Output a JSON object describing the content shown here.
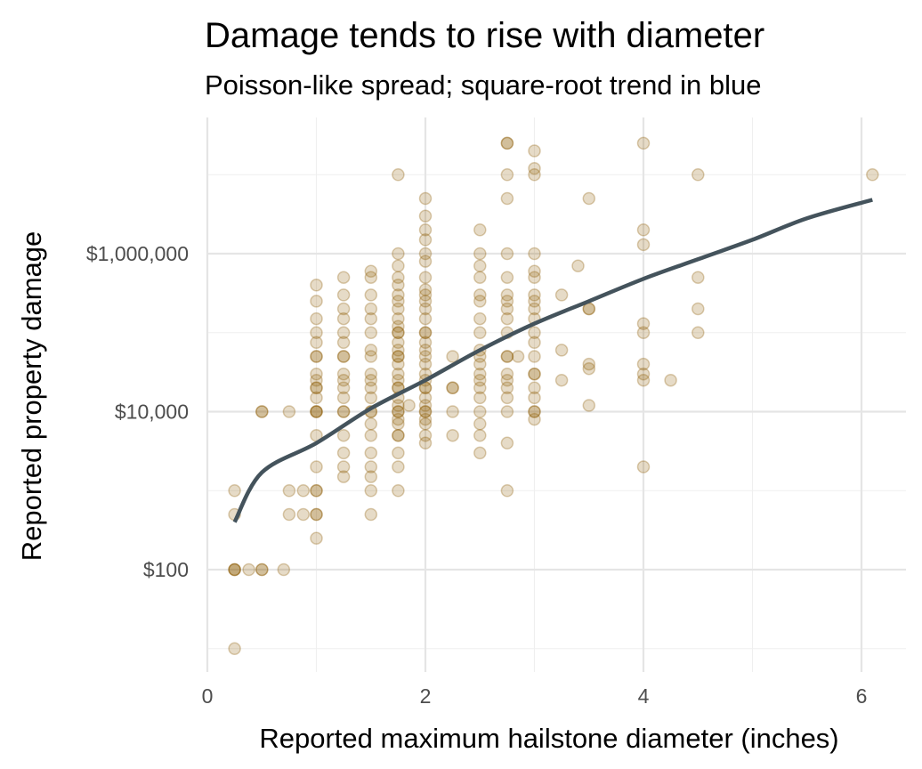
{
  "chart_data": {
    "type": "scatter",
    "title": "Damage tends to rise with diameter",
    "subtitle": "Poisson-like spread; square-root trend in blue",
    "xlabel": "Reported maximum hailstone diameter (inches)",
    "ylabel": "Reported property damage",
    "x_ticks": [
      0,
      2,
      4,
      6
    ],
    "x_tick_labels": [
      "0",
      "2",
      "4",
      "6"
    ],
    "xlim": [
      0,
      6.25
    ],
    "y_scale": "log10",
    "ylim": [
      5,
      20000000
    ],
    "y_ticks": [
      100,
      10000,
      1000000
    ],
    "y_tick_labels": [
      "$100",
      "$10,000",
      "$1,000,000"
    ],
    "y_minor_ticks": [
      10,
      1000,
      100000,
      10000000
    ],
    "grid": true,
    "point_color": "#8B5A00",
    "trend_color": "#44535C",
    "points": [
      [
        0.25,
        10
      ],
      [
        0.25,
        100
      ],
      [
        0.25,
        100
      ],
      [
        0.25,
        100
      ],
      [
        0.25,
        500
      ],
      [
        0.25,
        1000
      ],
      [
        0.38,
        100
      ],
      [
        0.5,
        100
      ],
      [
        0.5,
        100
      ],
      [
        0.5,
        10000
      ],
      [
        0.5,
        10000
      ],
      [
        0.7,
        100
      ],
      [
        0.75,
        10000
      ],
      [
        0.75,
        500
      ],
      [
        0.75,
        1000
      ],
      [
        0.88,
        500
      ],
      [
        0.88,
        1000
      ],
      [
        1.0,
        250
      ],
      [
        1.0,
        500
      ],
      [
        1.0,
        500
      ],
      [
        1.0,
        1000
      ],
      [
        1.0,
        1000
      ],
      [
        1.0,
        2000
      ],
      [
        1.0,
        5000
      ],
      [
        1.0,
        10000
      ],
      [
        1.0,
        10000
      ],
      [
        1.0,
        10000
      ],
      [
        1.0,
        15000
      ],
      [
        1.0,
        20000
      ],
      [
        1.0,
        20000
      ],
      [
        1.0,
        25000
      ],
      [
        1.0,
        30000
      ],
      [
        1.0,
        50000
      ],
      [
        1.0,
        50000
      ],
      [
        1.0,
        75000
      ],
      [
        1.0,
        100000
      ],
      [
        1.0,
        150000
      ],
      [
        1.0,
        250000
      ],
      [
        1.0,
        400000
      ],
      [
        1.25,
        1500
      ],
      [
        1.25,
        2000
      ],
      [
        1.25,
        3000
      ],
      [
        1.25,
        5000
      ],
      [
        1.25,
        10000
      ],
      [
        1.25,
        10000
      ],
      [
        1.25,
        15000
      ],
      [
        1.25,
        20000
      ],
      [
        1.25,
        25000
      ],
      [
        1.25,
        30000
      ],
      [
        1.25,
        50000
      ],
      [
        1.25,
        50000
      ],
      [
        1.25,
        75000
      ],
      [
        1.25,
        100000
      ],
      [
        1.25,
        150000
      ],
      [
        1.25,
        200000
      ],
      [
        1.25,
        300000
      ],
      [
        1.25,
        500000
      ],
      [
        1.5,
        500
      ],
      [
        1.5,
        1000
      ],
      [
        1.5,
        1500
      ],
      [
        1.5,
        2000
      ],
      [
        1.5,
        3000
      ],
      [
        1.5,
        5000
      ],
      [
        1.5,
        7000
      ],
      [
        1.5,
        10000
      ],
      [
        1.5,
        10000
      ],
      [
        1.5,
        15000
      ],
      [
        1.5,
        20000
      ],
      [
        1.5,
        25000
      ],
      [
        1.5,
        30000
      ],
      [
        1.5,
        50000
      ],
      [
        1.5,
        60000
      ],
      [
        1.5,
        100000
      ],
      [
        1.5,
        150000
      ],
      [
        1.5,
        200000
      ],
      [
        1.5,
        300000
      ],
      [
        1.5,
        500000
      ],
      [
        1.5,
        600000
      ],
      [
        1.75,
        1000
      ],
      [
        1.75,
        2000
      ],
      [
        1.75,
        3000
      ],
      [
        1.75,
        5000
      ],
      [
        1.75,
        5000
      ],
      [
        1.75,
        7000
      ],
      [
        1.75,
        8000
      ],
      [
        1.75,
        10000
      ],
      [
        1.75,
        10000
      ],
      [
        1.75,
        12000
      ],
      [
        1.75,
        15000
      ],
      [
        1.75,
        20000
      ],
      [
        1.75,
        20000
      ],
      [
        1.75,
        25000
      ],
      [
        1.75,
        30000
      ],
      [
        1.75,
        40000
      ],
      [
        1.75,
        50000
      ],
      [
        1.75,
        50000
      ],
      [
        1.75,
        60000
      ],
      [
        1.75,
        75000
      ],
      [
        1.75,
        100000
      ],
      [
        1.75,
        100000
      ],
      [
        1.75,
        120000
      ],
      [
        1.75,
        150000
      ],
      [
        1.75,
        200000
      ],
      [
        1.75,
        250000
      ],
      [
        1.75,
        300000
      ],
      [
        1.75,
        400000
      ],
      [
        1.75,
        500000
      ],
      [
        1.75,
        700000
      ],
      [
        1.75,
        1000000
      ],
      [
        1.75,
        10000000
      ],
      [
        1.85,
        12000
      ],
      [
        2.0,
        4000
      ],
      [
        2.0,
        5000
      ],
      [
        2.0,
        7000
      ],
      [
        2.0,
        8000
      ],
      [
        2.0,
        10000
      ],
      [
        2.0,
        10000
      ],
      [
        2.0,
        12000
      ],
      [
        2.0,
        15000
      ],
      [
        2.0,
        20000
      ],
      [
        2.0,
        20000
      ],
      [
        2.0,
        25000
      ],
      [
        2.0,
        30000
      ],
      [
        2.0,
        40000
      ],
      [
        2.0,
        50000
      ],
      [
        2.0,
        60000
      ],
      [
        2.0,
        75000
      ],
      [
        2.0,
        100000
      ],
      [
        2.0,
        100000
      ],
      [
        2.0,
        150000
      ],
      [
        2.0,
        200000
      ],
      [
        2.0,
        250000
      ],
      [
        2.0,
        300000
      ],
      [
        2.0,
        350000
      ],
      [
        2.0,
        500000
      ],
      [
        2.0,
        800000
      ],
      [
        2.0,
        1000000
      ],
      [
        2.0,
        1500000
      ],
      [
        2.0,
        2000000
      ],
      [
        2.0,
        3000000
      ],
      [
        2.0,
        5000000
      ],
      [
        2.25,
        5000
      ],
      [
        2.25,
        10000
      ],
      [
        2.25,
        20000
      ],
      [
        2.25,
        20000
      ],
      [
        2.25,
        50000
      ],
      [
        2.5,
        3000
      ],
      [
        2.5,
        5000
      ],
      [
        2.5,
        7000
      ],
      [
        2.5,
        10000
      ],
      [
        2.5,
        15000
      ],
      [
        2.5,
        20000
      ],
      [
        2.5,
        25000
      ],
      [
        2.5,
        30000
      ],
      [
        2.5,
        40000
      ],
      [
        2.5,
        50000
      ],
      [
        2.5,
        60000
      ],
      [
        2.5,
        100000
      ],
      [
        2.5,
        150000
      ],
      [
        2.5,
        250000
      ],
      [
        2.5,
        300000
      ],
      [
        2.5,
        500000
      ],
      [
        2.5,
        700000
      ],
      [
        2.5,
        1000000
      ],
      [
        2.5,
        2000000
      ],
      [
        2.75,
        1000
      ],
      [
        2.75,
        4000
      ],
      [
        2.75,
        10000
      ],
      [
        2.75,
        15000
      ],
      [
        2.75,
        20000
      ],
      [
        2.75,
        25000
      ],
      [
        2.75,
        30000
      ],
      [
        2.75,
        50000
      ],
      [
        2.75,
        50000
      ],
      [
        2.75,
        100000
      ],
      [
        2.75,
        150000
      ],
      [
        2.75,
        200000
      ],
      [
        2.75,
        250000
      ],
      [
        2.75,
        300000
      ],
      [
        2.75,
        500000
      ],
      [
        2.75,
        1000000
      ],
      [
        2.75,
        5000000
      ],
      [
        2.75,
        10000000
      ],
      [
        2.75,
        25000000
      ],
      [
        2.75,
        25000000
      ],
      [
        2.85,
        50000
      ],
      [
        3.0,
        8000
      ],
      [
        3.0,
        10000
      ],
      [
        3.0,
        10000
      ],
      [
        3.0,
        15000
      ],
      [
        3.0,
        20000
      ],
      [
        3.0,
        30000
      ],
      [
        3.0,
        30000
      ],
      [
        3.0,
        50000
      ],
      [
        3.0,
        75000
      ],
      [
        3.0,
        100000
      ],
      [
        3.0,
        150000
      ],
      [
        3.0,
        200000
      ],
      [
        3.0,
        250000
      ],
      [
        3.0,
        300000
      ],
      [
        3.0,
        500000
      ],
      [
        3.0,
        600000
      ],
      [
        3.0,
        1000000
      ],
      [
        3.0,
        10000000
      ],
      [
        3.0,
        12000000
      ],
      [
        3.0,
        20000000
      ],
      [
        3.25,
        25000
      ],
      [
        3.25,
        60000
      ],
      [
        3.25,
        300000
      ],
      [
        3.4,
        700000
      ],
      [
        3.5,
        12000
      ],
      [
        3.5,
        35000
      ],
      [
        3.5,
        40000
      ],
      [
        3.5,
        200000
      ],
      [
        3.5,
        200000
      ],
      [
        3.5,
        5000000
      ],
      [
        4.0,
        2000
      ],
      [
        4.0,
        25000
      ],
      [
        4.0,
        30000
      ],
      [
        4.0,
        40000
      ],
      [
        4.0,
        100000
      ],
      [
        4.0,
        130000
      ],
      [
        4.0,
        1300000
      ],
      [
        4.0,
        2000000
      ],
      [
        4.0,
        25000000
      ],
      [
        4.25,
        25000
      ],
      [
        4.5,
        100000
      ],
      [
        4.5,
        200000
      ],
      [
        4.5,
        500000
      ],
      [
        4.5,
        10000000
      ],
      [
        6.1,
        10000000
      ]
    ],
    "trend_line": [
      [
        0.25,
        400
      ],
      [
        0.5,
        1700
      ],
      [
        1.0,
        4000
      ],
      [
        1.5,
        11000
      ],
      [
        2.0,
        25000
      ],
      [
        2.5,
        60000
      ],
      [
        3.0,
        130000
      ],
      [
        3.5,
        250000
      ],
      [
        4.0,
        480000
      ],
      [
        4.5,
        850000
      ],
      [
        5.0,
        1500000
      ],
      [
        5.5,
        2800000
      ],
      [
        6.1,
        4800000
      ]
    ]
  }
}
